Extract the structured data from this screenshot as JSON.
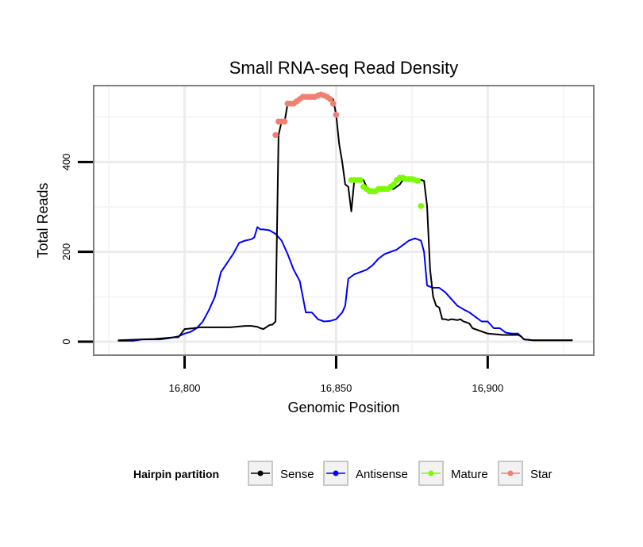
{
  "chart_data": {
    "type": "line",
    "title": "Small RNA-seq Read Density",
    "xlabel": "Genomic Position",
    "ylabel": "Total Reads",
    "xlim": [
      16770,
      16935
    ],
    "ylim": [
      -30,
      570
    ],
    "x_ticks": [
      {
        "value": 16800,
        "label": "16,800"
      },
      {
        "value": 16850,
        "label": "16,850"
      },
      {
        "value": 16900,
        "label": "16,900"
      }
    ],
    "y_ticks": [
      {
        "value": 0,
        "label": "0"
      },
      {
        "value": 200,
        "label": "200"
      },
      {
        "value": 400,
        "label": "400"
      }
    ],
    "legend": {
      "title": "Hairpin partition",
      "position": "bottom",
      "entries": [
        "Sense",
        "Antisense",
        "Mature",
        "Star"
      ]
    },
    "colors": {
      "Sense": "#000000",
      "Antisense": "#0000ff",
      "Mature": "#7cfc00",
      "Star": "#f08070"
    },
    "series": [
      {
        "name": "Sense",
        "style": "line",
        "x": [
          16778,
          16790,
          16797,
          16798,
          16800,
          16803,
          16805,
          16810,
          16815,
          16820,
          16822,
          16824,
          16825,
          16826,
          16828,
          16829,
          16830,
          16831,
          16832,
          16833,
          16834,
          16835,
          16836,
          16838,
          16840,
          16842,
          16844,
          16845,
          16846,
          16847,
          16848,
          16849,
          16850,
          16851,
          16852,
          16853,
          16854,
          16855,
          16856,
          16857,
          16858,
          16859,
          16860,
          16861,
          16862,
          16863,
          16864,
          16865,
          16866,
          16867,
          16868,
          16869,
          16870,
          16871,
          16872,
          16873,
          16874,
          16875,
          16876,
          16877,
          16878,
          16879,
          16880,
          16881,
          16882,
          16883,
          16884,
          16885,
          16886,
          16887,
          16888,
          16890,
          16891,
          16892,
          16893,
          16894,
          16895,
          16900,
          16905,
          16908,
          16910,
          16911,
          16912,
          16915,
          16920,
          16928
        ],
        "y": [
          3,
          6,
          10,
          10,
          28,
          30,
          32,
          32,
          32,
          35,
          35,
          33,
          30,
          28,
          37,
          38,
          45,
          460,
          490,
          490,
          530,
          530,
          535,
          540,
          545,
          545,
          545,
          548,
          550,
          548,
          545,
          540,
          505,
          440,
          400,
          350,
          345,
          290,
          360,
          360,
          360,
          360,
          345,
          340,
          335,
          335,
          335,
          340,
          340,
          340,
          340,
          340,
          345,
          350,
          360,
          365,
          365,
          362,
          362,
          362,
          360,
          358,
          302,
          160,
          100,
          80,
          76,
          50,
          50,
          48,
          50,
          48,
          50,
          45,
          43,
          40,
          30,
          18,
          15,
          15,
          15,
          12,
          5,
          3,
          3,
          3
        ]
      },
      {
        "name": "Antisense",
        "style": "line",
        "x": [
          16778,
          16783,
          16786,
          16790,
          16792,
          16795,
          16798,
          16800,
          16802,
          16804,
          16806,
          16808,
          16810,
          16812,
          16814,
          16816,
          16818,
          16820,
          16822,
          16823,
          16824,
          16825,
          16826,
          16828,
          16830,
          16832,
          16834,
          16836,
          16838,
          16840,
          16842,
          16844,
          16846,
          16848,
          16850,
          16852,
          16853,
          16854,
          16856,
          16858,
          16860,
          16862,
          16864,
          16866,
          16868,
          16870,
          16872,
          16874,
          16876,
          16878,
          16879,
          16880,
          16882,
          16884,
          16886,
          16888,
          16890,
          16892,
          16894,
          16896,
          16898,
          16900,
          16902,
          16904,
          16906,
          16908,
          16910,
          16912,
          16915,
          16920,
          16925,
          16928
        ],
        "y": [
          2,
          2,
          5,
          5,
          5,
          8,
          12,
          18,
          22,
          30,
          45,
          70,
          100,
          155,
          175,
          195,
          220,
          225,
          228,
          232,
          255,
          250,
          250,
          248,
          240,
          225,
          195,
          160,
          135,
          65,
          65,
          50,
          45,
          46,
          50,
          65,
          80,
          140,
          150,
          155,
          160,
          170,
          185,
          195,
          200,
          205,
          215,
          225,
          230,
          225,
          200,
          125,
          120,
          120,
          110,
          95,
          80,
          72,
          65,
          55,
          45,
          45,
          30,
          30,
          20,
          18,
          18,
          5,
          3,
          3,
          3,
          3
        ]
      },
      {
        "name": "Mature",
        "style": "points",
        "x": [
          16855,
          16856,
          16857,
          16858,
          16859,
          16860,
          16861,
          16862,
          16863,
          16864,
          16865,
          16866,
          16867,
          16868,
          16869,
          16870,
          16871,
          16872,
          16873,
          16874,
          16875,
          16876,
          16877,
          16878
        ],
        "y": [
          360,
          360,
          360,
          360,
          345,
          340,
          335,
          335,
          335,
          340,
          340,
          340,
          340,
          345,
          350,
          360,
          365,
          365,
          362,
          362,
          362,
          360,
          358,
          302
        ]
      },
      {
        "name": "Star",
        "style": "points",
        "x": [
          16830,
          16831,
          16832,
          16833,
          16834,
          16835,
          16836,
          16837,
          16838,
          16839,
          16840,
          16841,
          16842,
          16843,
          16844,
          16845,
          16846,
          16847,
          16848,
          16849,
          16850
        ],
        "y": [
          460,
          490,
          490,
          490,
          530,
          530,
          530,
          535,
          540,
          545,
          545,
          545,
          545,
          545,
          548,
          550,
          548,
          545,
          540,
          530,
          505
        ]
      }
    ]
  }
}
